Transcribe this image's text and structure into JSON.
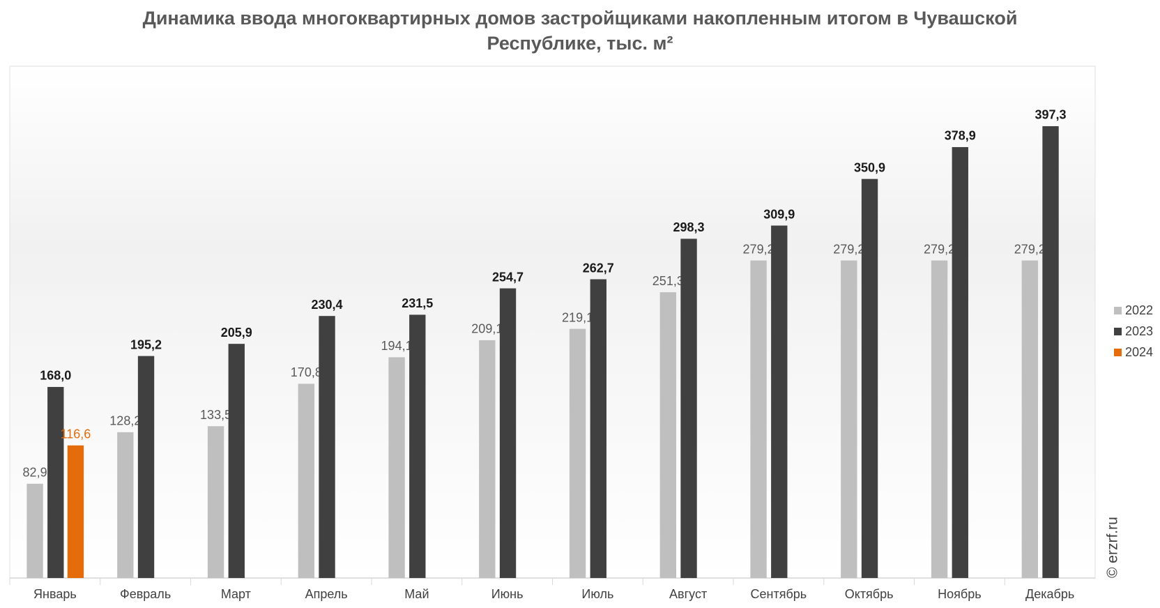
{
  "chart_data": {
    "type": "bar",
    "title": "Динамика ввода многоквартирных домов застройщиками накопленным итогом в Чувашской Республике, тыс. м²",
    "categories": [
      "Январь",
      "Февраль",
      "Март",
      "Апрель",
      "Май",
      "Июнь",
      "Июль",
      "Август",
      "Сентябрь",
      "Октябрь",
      "Ноябрь",
      "Декабрь"
    ],
    "series": [
      {
        "name": "2022",
        "color": "#bfbfbf",
        "label_color": "#595959",
        "values": [
          82.9,
          128.2,
          133.5,
          170.8,
          194.1,
          209.1,
          219.1,
          251.3,
          279.2,
          279.2,
          279.2,
          279.2
        ],
        "value_labels": [
          "82,9",
          "128,2",
          "133,5",
          "170,8",
          "194,1",
          "209,1",
          "219,1",
          "251,3",
          "279,2",
          "279,2",
          "279,2",
          "279,2"
        ]
      },
      {
        "name": "2023",
        "color": "#404040",
        "label_color": "#1a1a1a",
        "values": [
          168.0,
          195.2,
          205.9,
          230.4,
          231.5,
          254.7,
          262.7,
          298.3,
          309.9,
          350.9,
          378.9,
          397.3
        ],
        "value_labels": [
          "168,0",
          "195,2",
          "205,9",
          "230,4",
          "231,5",
          "254,7",
          "262,7",
          "298,3",
          "309,9",
          "350,9",
          "378,9",
          "397,3"
        ]
      },
      {
        "name": "2024",
        "color": "#e46c0a",
        "label_color": "#e46c0a",
        "values": [
          116.6,
          null,
          null,
          null,
          null,
          null,
          null,
          null,
          null,
          null,
          null,
          null
        ],
        "value_labels": [
          "116,6",
          null,
          null,
          null,
          null,
          null,
          null,
          null,
          null,
          null,
          null,
          null
        ]
      }
    ],
    "ylim": [
      0,
      450
    ],
    "legend": "right",
    "watermark": "© erzrf.ru"
  }
}
